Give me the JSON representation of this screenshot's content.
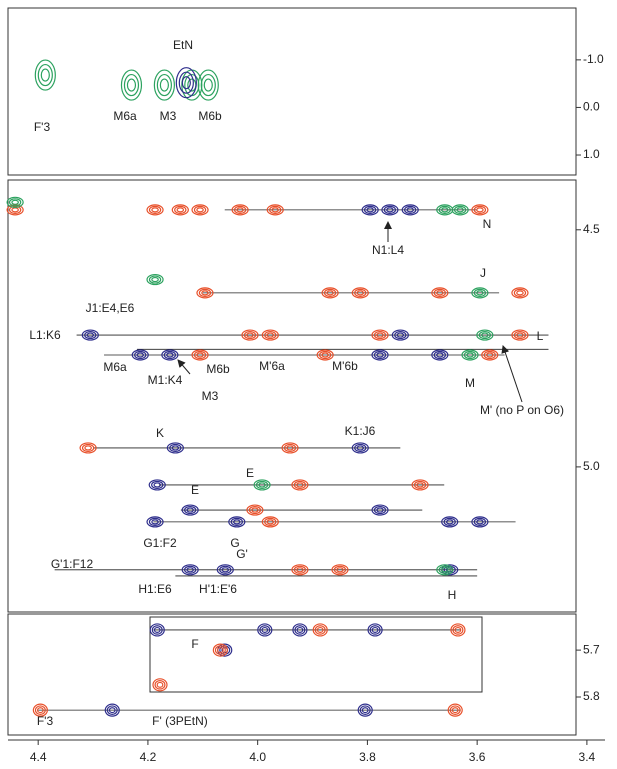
{
  "chart_data": [
    {
      "type": "scatter",
      "xlim": [
        4.455,
        3.367
      ],
      "ylim": [
        -2.09,
        1.42
      ],
      "yticks": [
        {
          "value": -1,
          "label": "-1.0"
        },
        {
          "value": 0,
          "label": "0.0"
        },
        {
          "value": 1,
          "label": "1.0"
        }
      ],
      "series": [
        {
          "color": "#2ca25f",
          "x": [
            4.387,
            4.23,
            4.17,
            4.12,
            4.09
          ],
          "values": [
            -0.68,
            -0.47,
            -0.47,
            -0.47,
            -0.47
          ]
        },
        {
          "color": "#2e2e8c",
          "x": [
            4.13
          ],
          "values": [
            -0.52
          ]
        }
      ],
      "annotations": [
        "EtN",
        "F'3",
        "M6a",
        "M3",
        "M6b"
      ]
    },
    {
      "type": "scatter",
      "xlim": [
        4.455,
        3.367
      ],
      "ylim": [
        4.395,
        5.306
      ],
      "yticks": [
        4.5,
        {
          "value": 5,
          "label": "5.0"
        }
      ],
      "series": [
        {
          "color": "#e8502a",
          "x": [
            4.442,
            4.187,
            4.141,
            4.105,
            4.032,
            3.968,
            3.595,
            4.096,
            3.868,
            3.813,
            3.668,
            3.522,
            4.014,
            3.977,
            3.777,
            3.522,
            4.105,
            3.877,
            3.577,
            4.309,
            3.941,
            3.923,
            3.704,
            4.005,
            3.977,
            3.923,
            3.85
          ],
          "values": [
            4.458,
            4.458,
            4.458,
            4.458,
            4.458,
            4.458,
            4.458,
            4.633,
            4.633,
            4.633,
            4.633,
            4.633,
            4.722,
            4.722,
            4.722,
            4.722,
            4.764,
            4.764,
            4.764,
            4.96,
            4.96,
            5.038,
            5.038,
            5.091,
            5.116,
            5.217,
            5.217
          ]
        },
        {
          "color": "#2e2e8c",
          "x": [
            3.795,
            3.759,
            3.722,
            4.305,
            3.74,
            4.214,
            4.16,
            3.777,
            3.668,
            4.15,
            3.813,
            4.183,
            4.123,
            3.777,
            4.187,
            4.038,
            3.65,
            3.595,
            4.123,
            4.059,
            3.65
          ],
          "values": [
            4.458,
            4.458,
            4.458,
            4.722,
            4.722,
            4.764,
            4.764,
            4.764,
            4.764,
            4.96,
            4.96,
            5.038,
            5.091,
            5.091,
            5.116,
            5.116,
            5.116,
            5.116,
            5.217,
            5.217,
            5.217
          ]
        },
        {
          "color": "#2ca25f",
          "x": [
            4.442,
            3.659,
            3.631,
            4.187,
            3.595,
            3.586,
            3.613,
            3.992,
            3.659
          ],
          "values": [
            4.442,
            4.458,
            4.458,
            4.605,
            4.633,
            4.722,
            4.764,
            5.038,
            5.217
          ]
        }
      ],
      "lines": [
        {
          "y": 4.458,
          "x": [
            4.06,
            3.6
          ]
        },
        {
          "y": 4.633,
          "x": [
            4.1,
            3.56
          ]
        },
        {
          "y": 4.722,
          "x": [
            4.33,
            3.47
          ]
        },
        {
          "y": 4.752,
          "x": [
            4.22,
            3.47
          ]
        },
        {
          "y": 4.764,
          "x": [
            4.28,
            3.55
          ]
        },
        {
          "y": 4.96,
          "x": [
            4.3,
            3.74
          ]
        },
        {
          "y": 5.038,
          "x": [
            4.18,
            3.66
          ]
        },
        {
          "y": 5.091,
          "x": [
            4.14,
            3.7
          ]
        },
        {
          "y": 5.116,
          "x": [
            4.19,
            3.53
          ]
        },
        {
          "y": 5.217,
          "x": [
            4.37,
            3.6
          ]
        },
        {
          "y": 5.23,
          "x": [
            4.15,
            3.6
          ]
        }
      ],
      "annotations": [
        "N1:L4",
        "N",
        "J",
        "J1:E4,E6",
        "L1:K6",
        "L",
        "M6a",
        "M1:K4",
        "M6b",
        "M'6a",
        "M'6b",
        "M3",
        "M",
        "M' (no P on O6)",
        "K",
        "K1:J6",
        "E",
        "E",
        "G1:F2",
        "G",
        "G'",
        "G'1:F12",
        "H1:E6",
        "H'1:E'6",
        "H"
      ]
    },
    {
      "type": "scatter",
      "xlim": [
        4.455,
        3.367
      ],
      "ylim": [
        5.623,
        5.881
      ],
      "xticks": [
        4.4,
        4.2,
        {
          "value": 4,
          "label": "4.0"
        },
        3.8,
        3.6,
        3.4
      ],
      "yticks": [
        5.7,
        5.8
      ],
      "series": [
        {
          "color": "#2e2e8c",
          "x": [
            4.183,
            3.987,
            3.923,
            3.786,
            4.06,
            4.265,
            3.804
          ],
          "values": [
            5.657,
            5.657,
            5.657,
            5.657,
            5.7,
            5.828,
            5.828
          ]
        },
        {
          "color": "#e8502a",
          "x": [
            3.886,
            3.635,
            4.068,
            4.178,
            4.396,
            3.64
          ],
          "values": [
            5.657,
            5.657,
            5.7,
            5.774,
            5.828,
            5.828
          ]
        }
      ],
      "lines": [
        {
          "y": 5.657,
          "x": [
            4.19,
            3.63
          ]
        },
        {
          "y": 5.828,
          "x": [
            4.4,
            3.63
          ]
        }
      ],
      "annotations": [
        "F",
        "F'3",
        "F' (3PEtN)"
      ]
    }
  ]
}
